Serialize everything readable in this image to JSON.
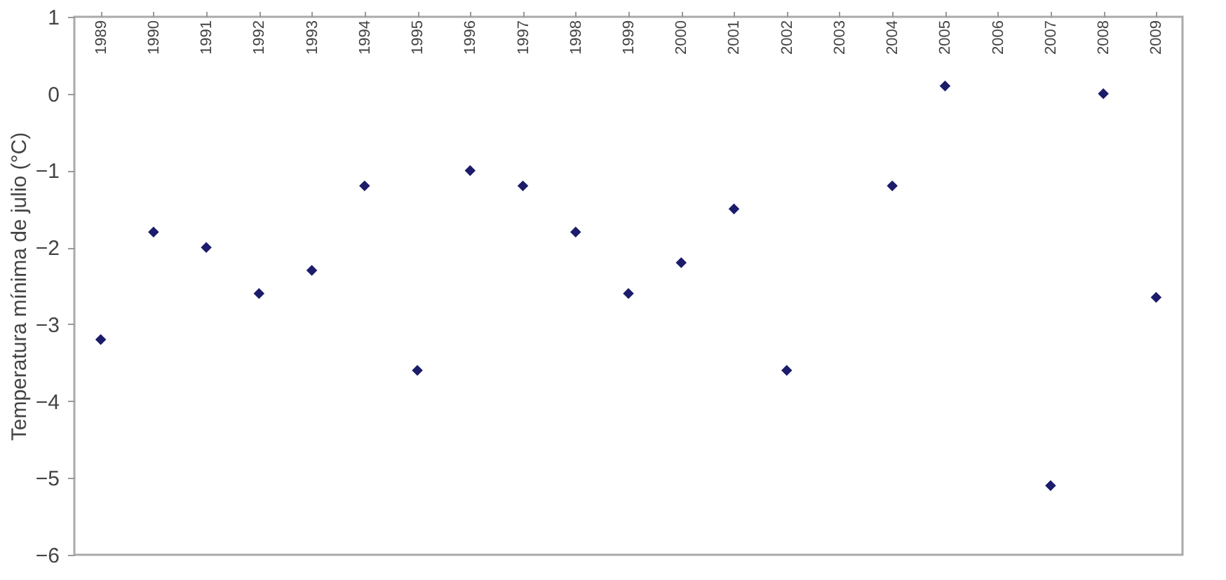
{
  "chart_data": {
    "type": "scatter",
    "ylabel": "Temperatura mínima de julio (°C)",
    "categories": [
      "1989",
      "1990",
      "1991",
      "1992",
      "1993",
      "1994",
      "1995",
      "1996",
      "1997",
      "1998",
      "1999",
      "2000",
      "2001",
      "2002",
      "2003",
      "2004",
      "2005",
      "2006",
      "2007",
      "2008",
      "2009"
    ],
    "series": [
      {
        "color": "#1c1c6b",
        "values": [
          -3.2,
          -1.8,
          -2.0,
          -2.6,
          -2.3,
          -1.2,
          -3.6,
          -1.0,
          -1.2,
          -1.8,
          -2.6,
          -2.2,
          -1.5,
          -3.6,
          null,
          -1.2,
          0.1,
          null,
          -5.1,
          0.0,
          -2.65
        ]
      }
    ],
    "ylim": [
      -6,
      1
    ],
    "yticks": [
      -6,
      -5,
      -4,
      -3,
      -2,
      -1,
      0,
      1
    ],
    "grid": false,
    "legend": false,
    "marker": "diamond"
  }
}
